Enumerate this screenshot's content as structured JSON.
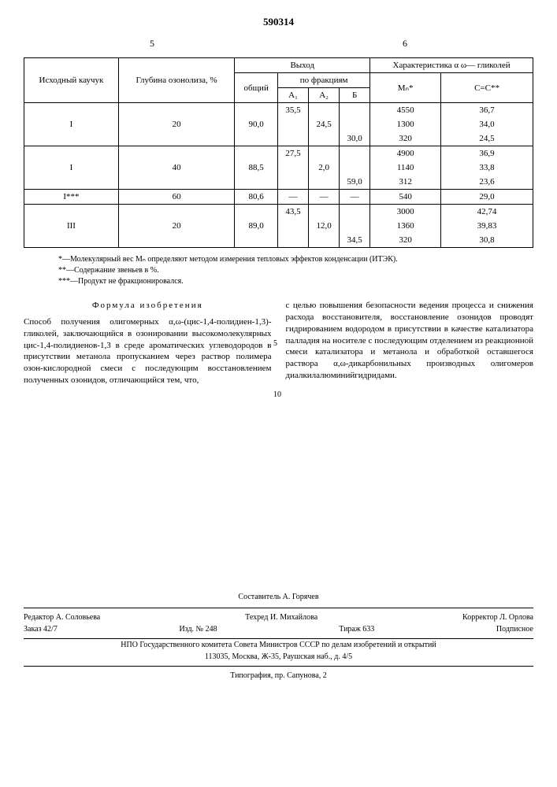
{
  "doc_number": "590314",
  "colnum_left": "5",
  "colnum_right": "6",
  "table": {
    "headers": {
      "c1": "Исходный каучук",
      "c2": "Глубина озонолиза, %",
      "c3": "Выход",
      "c3a": "общий",
      "c3b": "по фракциям",
      "fA1": "А₁",
      "fA2": "А₂",
      "fB": "Б",
      "c4": "Характеристика α ω— гликолей",
      "Mn": "Mₙ*",
      "CC": "С=С**"
    },
    "rows": [
      {
        "r": "",
        "d": "",
        "t": "",
        "a1": "35,5",
        "a2": "",
        "b": "",
        "mn": "4550",
        "cc": "36,7"
      },
      {
        "r": "I",
        "d": "20",
        "t": "90,0",
        "a1": "",
        "a2": "24,5",
        "b": "",
        "mn": "1300",
        "cc": "34,0"
      },
      {
        "r": "",
        "d": "",
        "t": "",
        "a1": "",
        "a2": "",
        "b": "30,0",
        "mn": "320",
        "cc": "24,5"
      },
      {
        "r": "",
        "d": "",
        "t": "",
        "a1": "27,5",
        "a2": "",
        "b": "",
        "mn": "4900",
        "cc": "36,9"
      },
      {
        "r": "I",
        "d": "40",
        "t": "88,5",
        "a1": "",
        "a2": "2,0",
        "b": "",
        "mn": "1140",
        "cc": "33,8"
      },
      {
        "r": "",
        "d": "",
        "t": "",
        "a1": "",
        "a2": "",
        "b": "59,0",
        "mn": "312",
        "cc": "23,6"
      },
      {
        "r": "I***",
        "d": "60",
        "t": "80,6",
        "a1": "—",
        "a2": "—",
        "b": "—",
        "mn": "540",
        "cc": "29,0"
      },
      {
        "r": "",
        "d": "",
        "t": "",
        "a1": "43,5",
        "a2": "",
        "b": "",
        "mn": "3000",
        "cc": "42,74"
      },
      {
        "r": "III",
        "d": "20",
        "t": "89,0",
        "a1": "",
        "a2": "12,0",
        "b": "",
        "mn": "1360",
        "cc": "39,83"
      },
      {
        "r": "",
        "d": "",
        "t": "",
        "a1": "",
        "a2": "",
        "b": "34,5",
        "mn": "320",
        "cc": "30,8"
      }
    ]
  },
  "notes": {
    "n1": "*—Молекулярный вес Mₙ определяют методом измерения тепловых эффектов конденсации (ИТЭК).",
    "n2": "**—Содержание звеньев в %.",
    "n3": "***—Продукт не фракционировался."
  },
  "formula_title": "Формула изобретения",
  "left_text": "Способ получения олигомерных α,ω-(цис-1,4-полидиен-1,3)-гликолей, заключающийся в озонировании высокомолекулярных цис-1,4-полидиенов-1,3 в среде ароматических углеводородов в присутствии метанола пропусканием через раствор полимера озон-кислородной смеси с последующим восстановлением полученных озонидов, отличающийся тем, что,",
  "right_text": "с целью повышения безопасности ведения процесса и снижения расхода восстановителя, восстановление озонидов проводят гидрированием водородом в присутствии в качестве катализатора палладия на носителе с последующим отделением из реакционной смеси катализатора и метанола и обработкой оставшегося раствора α,ω-дикарбонильных производных олигомеров диалкилалюминийгидридами.",
  "ln5": "5",
  "ln10": "10",
  "imprint": {
    "compiler": "Составитель А. Горячев",
    "editor": "Редактор А. Соловьева",
    "techred": "Техред И. Михайлова",
    "corrector": "Корректор Л. Орлова",
    "zakaz": "Заказ 42/7",
    "izd": "Изд. № 248",
    "tirazh": "Тираж 633",
    "podpisnoe": "Подписное",
    "org": "НПО Государственного комитета Совета Министров СССР по делам изобретений и открытий",
    "addr": "113035, Москва, Ж-35, Раушская наб., д. 4/5",
    "typo": "Типография, пр. Сапунова, 2"
  }
}
